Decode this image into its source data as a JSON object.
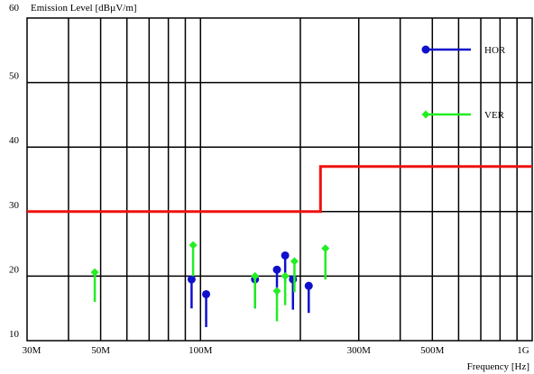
{
  "chart_data": {
    "type": "scatter",
    "ylabel": "Emission Level [dBµV/m]",
    "xlabel": "Frequency [Hz]",
    "x_scale": "log",
    "xlim": [
      30,
      1000
    ],
    "ylim": [
      10,
      60
    ],
    "grid": true,
    "y_ticks": [
      {
        "value": 10,
        "label": "10"
      },
      {
        "value": 20,
        "label": "20"
      },
      {
        "value": 30,
        "label": "30"
      },
      {
        "value": 40,
        "label": "40"
      },
      {
        "value": 50,
        "label": "50"
      },
      {
        "value": 60,
        "label": "60"
      }
    ],
    "x_ticks": [
      {
        "value": 30,
        "label": "30M"
      },
      {
        "value": 50,
        "label": "50M"
      },
      {
        "value": 100,
        "label": "100M"
      },
      {
        "value": 300,
        "label": "300M"
      },
      {
        "value": 500,
        "label": "500M"
      },
      {
        "value": 1000,
        "label": "1G"
      }
    ],
    "x_gridlines": [
      40,
      50,
      60,
      70,
      80,
      90,
      100,
      200,
      300,
      400,
      500,
      600,
      700,
      800,
      900
    ],
    "limit_line": {
      "color": "#ee1111",
      "points": [
        [
          30,
          30
        ],
        [
          230,
          30
        ],
        [
          230,
          37
        ],
        [
          1000,
          37
        ]
      ]
    },
    "legend_position": "top-right",
    "series": [
      {
        "name": "HOR",
        "color": "#1010cc",
        "marker": "circle",
        "points": [
          {
            "x": 94,
            "top": 19.5,
            "bottom": 15
          },
          {
            "x": 104,
            "top": 17.2,
            "bottom": 12.1
          },
          {
            "x": 146,
            "top": 19.5,
            "bottom": 15
          },
          {
            "x": 170,
            "top": 21,
            "bottom": 17
          },
          {
            "x": 180,
            "top": 23.2,
            "bottom": 19
          },
          {
            "x": 190,
            "top": 19.5,
            "bottom": 14.8
          },
          {
            "x": 212,
            "top": 18.5,
            "bottom": 14.3
          }
        ]
      },
      {
        "name": "VER",
        "color": "#22ee22",
        "marker": "diamond",
        "points": [
          {
            "x": 48,
            "top": 20.6,
            "bottom": 16
          },
          {
            "x": 95,
            "top": 24.8,
            "bottom": 20
          },
          {
            "x": 146,
            "top": 20,
            "bottom": 15
          },
          {
            "x": 170,
            "top": 17.7,
            "bottom": 13
          },
          {
            "x": 180,
            "top": 20,
            "bottom": 15.5
          },
          {
            "x": 192,
            "top": 22.3,
            "bottom": 17.5
          },
          {
            "x": 238,
            "top": 24.3,
            "bottom": 19.5
          }
        ]
      }
    ]
  }
}
